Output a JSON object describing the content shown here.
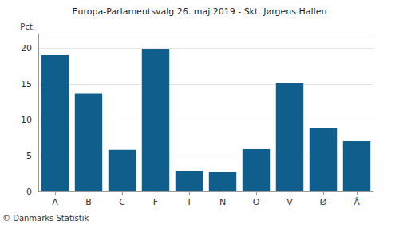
{
  "chart_data": {
    "type": "bar",
    "title": "Europa-Parlamentsvalg 26. maj 2019 - Skt. Jørgens Hallen",
    "ylabel": "Pct.",
    "source": "© Danmarks Statistik",
    "categories": [
      "A",
      "B",
      "C",
      "F",
      "I",
      "N",
      "O",
      "V",
      "Ø",
      "Å"
    ],
    "values": [
      19.0,
      13.6,
      5.8,
      19.8,
      2.9,
      2.7,
      5.9,
      15.1,
      8.9,
      7.0
    ],
    "color": "#0f5e8c",
    "ylim": [
      0,
      22
    ],
    "yticks": [
      0,
      5,
      10,
      15,
      20
    ],
    "grid": true
  }
}
